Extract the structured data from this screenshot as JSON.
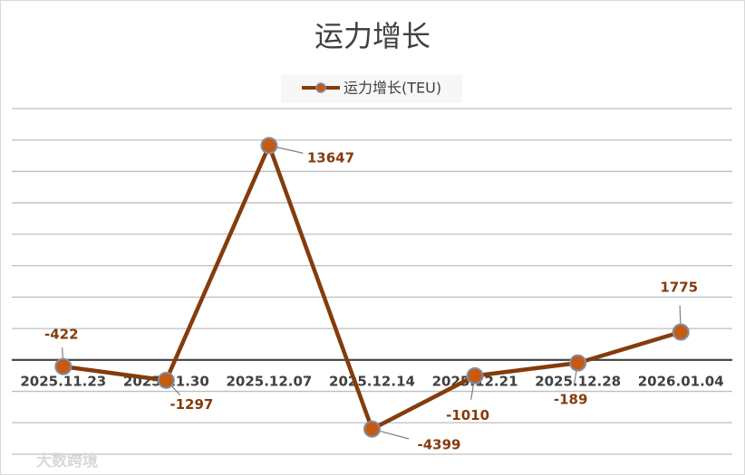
{
  "chart_data": {
    "type": "line",
    "title": "运力增长",
    "categories": [
      "2025.11.23",
      "2025.11.30",
      "2025.12.07",
      "2025.12.14",
      "2025.12.21",
      "2025.12.28",
      "2026.01.04"
    ],
    "series": [
      {
        "name": "运力增长(TEU)",
        "color": "#843c0c",
        "marker_color": "#c55a11",
        "values": [
          -422,
          -1297,
          13647,
          -4399,
          -1010,
          -189,
          1775
        ]
      }
    ],
    "ylim": [
      -6000,
      16000
    ],
    "yticks": [
      -6000,
      -4000,
      -2000,
      0,
      2000,
      4000,
      6000,
      8000,
      10000,
      12000,
      14000,
      16000
    ],
    "grid": true,
    "legend": "top",
    "watermark": "大数跨境"
  }
}
